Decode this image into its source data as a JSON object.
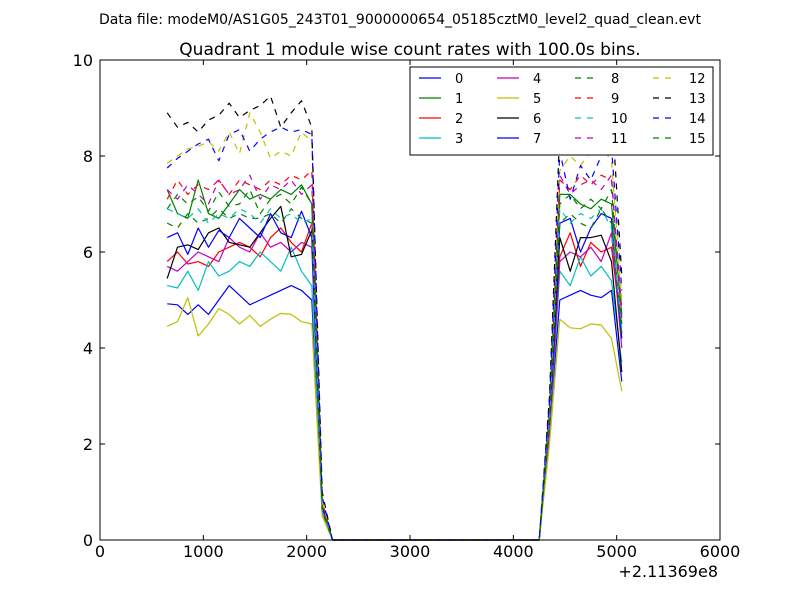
{
  "chart_data": {
    "type": "line",
    "suptitle": "Data file: modeM0/AS1G05_243T01_9000000654_05185cztM0_level2_quad_clean.evt",
    "title": "Quadrant 1 module wise count rates with 100.0s bins.",
    "xlabel": "",
    "ylabel": "",
    "x_offset_label": "+2.11369e8",
    "xlim": [
      0,
      6000
    ],
    "ylim": [
      0,
      10
    ],
    "xticks": [
      "0",
      "1000",
      "2000",
      "3000",
      "4000",
      "5000",
      "6000"
    ],
    "yticks": [
      "0",
      "2",
      "4",
      "6",
      "8",
      "10"
    ],
    "grid": false,
    "legend_position": "top-right",
    "x": [
      650,
      750,
      850,
      950,
      1050,
      1150,
      1250,
      1350,
      1450,
      1550,
      1650,
      1750,
      1850,
      1950,
      2050,
      2150,
      2250,
      2350,
      2450,
      2550,
      2650,
      2750,
      2850,
      2950,
      3050,
      3150,
      3250,
      3350,
      3450,
      3550,
      3650,
      3750,
      3850,
      3950,
      4050,
      4150,
      4250,
      4350,
      4450,
      4550,
      4650,
      4750,
      4850,
      4950,
      5050
    ],
    "series": [
      {
        "name": "0",
        "color": "#0000ff",
        "dash": "solid",
        "values": [
          4.92,
          4.9,
          4.7,
          4.9,
          4.7,
          5.0,
          5.3,
          5.1,
          4.9,
          5.0,
          5.1,
          5.2,
          5.3,
          5.2,
          5.0,
          0.6,
          0,
          0,
          0,
          0,
          0,
          0,
          0,
          0,
          0,
          0,
          0,
          0,
          0,
          0,
          0,
          0,
          0,
          0,
          0,
          0,
          0,
          2.3,
          5.0,
          5.1,
          5.2,
          5.1,
          5.05,
          5.2,
          3.3
        ]
      },
      {
        "name": "1",
        "color": "#008000",
        "dash": "solid",
        "values": [
          7.3,
          6.8,
          6.7,
          7.5,
          6.8,
          6.7,
          7.0,
          7.3,
          7.1,
          7.2,
          7.1,
          7.3,
          7.2,
          7.4,
          7.0,
          0.6,
          0,
          0,
          0,
          0,
          0,
          0,
          0,
          0,
          0,
          0,
          0,
          0,
          0,
          0,
          0,
          0,
          0,
          0,
          0,
          0,
          0,
          2.4,
          7.2,
          7.2,
          7.0,
          6.9,
          7.1,
          7.0,
          4.7
        ]
      },
      {
        "name": "2",
        "color": "#ff0000",
        "dash": "solid",
        "values": [
          5.8,
          6.0,
          5.75,
          5.8,
          5.7,
          6.0,
          6.1,
          6.2,
          6.1,
          5.9,
          6.3,
          6.5,
          6.2,
          6.0,
          6.6,
          0.7,
          0,
          0,
          0,
          0,
          0,
          0,
          0,
          0,
          0,
          0,
          0,
          0,
          0,
          0,
          0,
          0,
          0,
          0,
          0,
          0,
          0,
          2.3,
          5.9,
          6.4,
          5.7,
          6.2,
          6.0,
          6.1,
          4.3
        ]
      },
      {
        "name": "3",
        "color": "#00bfbf",
        "dash": "solid",
        "values": [
          5.3,
          5.25,
          5.6,
          5.2,
          5.8,
          5.5,
          5.6,
          5.8,
          5.7,
          6.0,
          5.8,
          5.6,
          6.1,
          5.6,
          5.3,
          0.6,
          0,
          0,
          0,
          0,
          0,
          0,
          0,
          0,
          0,
          0,
          0,
          0,
          0,
          0,
          0,
          0,
          0,
          0,
          0,
          0,
          0,
          2.2,
          5.6,
          5.3,
          5.9,
          5.5,
          5.7,
          5.4,
          3.7
        ]
      },
      {
        "name": "4",
        "color": "#bf00bf",
        "dash": "solid",
        "values": [
          5.7,
          5.6,
          5.8,
          6.0,
          5.9,
          5.8,
          6.3,
          6.1,
          6.0,
          6.4,
          6.1,
          6.2,
          6.0,
          6.2,
          6.1,
          0.6,
          0,
          0,
          0,
          0,
          0,
          0,
          0,
          0,
          0,
          0,
          0,
          0,
          0,
          0,
          0,
          0,
          0,
          0,
          0,
          0,
          0,
          2.3,
          5.8,
          6.0,
          5.9,
          6.1,
          5.8,
          6.4,
          4.0
        ]
      },
      {
        "name": "5",
        "color": "#bfbf00",
        "dash": "solid",
        "values": [
          4.45,
          4.55,
          5.05,
          4.25,
          4.5,
          4.82,
          4.7,
          4.5,
          4.68,
          4.45,
          4.6,
          4.72,
          4.7,
          4.55,
          4.5,
          0.5,
          0,
          0,
          0,
          0,
          0,
          0,
          0,
          0,
          0,
          0,
          0,
          0,
          0,
          0,
          0,
          0,
          0,
          0,
          0,
          0,
          0,
          2.0,
          4.6,
          4.42,
          4.4,
          4.5,
          4.48,
          4.2,
          3.1
        ]
      },
      {
        "name": "6",
        "color": "#000000",
        "dash": "solid",
        "values": [
          5.45,
          6.1,
          6.15,
          6.05,
          6.4,
          6.5,
          6.2,
          6.15,
          6.1,
          6.4,
          6.7,
          6.95,
          5.9,
          5.95,
          6.45,
          0.7,
          0,
          0,
          0,
          0,
          0,
          0,
          0,
          0,
          0,
          0,
          0,
          0,
          0,
          0,
          0,
          0,
          0,
          0,
          0,
          0,
          0,
          2.5,
          6.3,
          5.6,
          6.3,
          6.3,
          6.35,
          5.8,
          3.5
        ]
      },
      {
        "name": "7",
        "color": "#0000ff",
        "dash": "solid",
        "values": [
          6.3,
          6.4,
          5.95,
          6.5,
          6.1,
          6.45,
          6.3,
          6.7,
          6.5,
          6.3,
          6.8,
          6.4,
          6.3,
          6.85,
          6.3,
          0.7,
          0,
          0,
          0,
          0,
          0,
          0,
          0,
          0,
          0,
          0,
          0,
          0,
          0,
          0,
          0,
          0,
          0,
          0,
          0,
          0,
          0,
          2.6,
          6.6,
          6.7,
          6.0,
          6.5,
          6.8,
          6.7,
          4.2
        ]
      },
      {
        "name": "8",
        "color": "#008000",
        "dash": "dashed",
        "values": [
          6.6,
          6.5,
          6.8,
          6.6,
          6.7,
          6.9,
          6.7,
          6.8,
          6.7,
          6.7,
          6.8,
          6.6,
          6.9,
          6.7,
          6.6,
          0.6,
          0,
          0,
          0,
          0,
          0,
          0,
          0,
          0,
          0,
          0,
          0,
          0,
          0,
          0,
          0,
          0,
          0,
          0,
          0,
          0,
          0,
          2.5,
          6.6,
          6.8,
          6.6,
          6.5,
          6.9,
          6.6,
          4.3
        ]
      },
      {
        "name": "9",
        "color": "#ff0000",
        "dash": "dashed",
        "values": [
          7.1,
          7.5,
          7.2,
          7.4,
          7.3,
          7.5,
          7.2,
          7.5,
          7.4,
          7.3,
          7.5,
          7.4,
          7.6,
          7.5,
          7.7,
          0.8,
          0,
          0,
          0,
          0,
          0,
          0,
          0,
          0,
          0,
          0,
          0,
          0,
          0,
          0,
          0,
          0,
          0,
          0,
          0,
          0,
          0,
          2.7,
          7.5,
          7.3,
          7.6,
          7.4,
          7.6,
          7.5,
          4.8
        ]
      },
      {
        "name": "10",
        "color": "#00bfbf",
        "dash": "dashed",
        "values": [
          6.9,
          6.8,
          6.7,
          6.9,
          6.6,
          6.8,
          6.7,
          6.9,
          6.8,
          6.6,
          6.9,
          6.7,
          6.8,
          6.6,
          6.7,
          0.6,
          0,
          0,
          0,
          0,
          0,
          0,
          0,
          0,
          0,
          0,
          0,
          0,
          0,
          0,
          0,
          0,
          0,
          0,
          0,
          0,
          0,
          2.5,
          6.9,
          6.6,
          6.8,
          6.7,
          6.9,
          6.5,
          4.4
        ]
      },
      {
        "name": "11",
        "color": "#bf00bf",
        "dash": "dashed",
        "values": [
          7.3,
          7.1,
          7.4,
          7.2,
          7.0,
          7.5,
          7.2,
          7.3,
          7.6,
          7.1,
          7.4,
          7.3,
          7.5,
          7.2,
          7.4,
          0.7,
          0,
          0,
          0,
          0,
          0,
          0,
          0,
          0,
          0,
          0,
          0,
          0,
          0,
          0,
          0,
          0,
          0,
          0,
          0,
          0,
          0,
          2.6,
          7.6,
          7.2,
          7.4,
          7.5,
          7.3,
          7.6,
          4.6
        ]
      },
      {
        "name": "12",
        "color": "#bfbf00",
        "dash": "dashed",
        "values": [
          7.85,
          8.0,
          8.15,
          8.2,
          8.3,
          8.1,
          8.5,
          8.05,
          8.9,
          8.5,
          7.95,
          8.1,
          8.0,
          8.5,
          8.3,
          0.8,
          0,
          0,
          0,
          0,
          0,
          0,
          0,
          0,
          0,
          0,
          0,
          0,
          0,
          0,
          0,
          0,
          0,
          0,
          0,
          0,
          0,
          2.8,
          7.7,
          8.0,
          7.8,
          8.1,
          8.2,
          7.9,
          5.0
        ]
      },
      {
        "name": "13",
        "color": "#000000",
        "dash": "dashed",
        "values": [
          8.9,
          8.6,
          8.7,
          8.5,
          8.75,
          8.85,
          9.1,
          8.8,
          8.95,
          9.05,
          9.25,
          8.6,
          8.9,
          9.15,
          8.6,
          1.0,
          0,
          0,
          0,
          0,
          0,
          0,
          0,
          0,
          0,
          0,
          0,
          0,
          0,
          0,
          0,
          0,
          0,
          0,
          0,
          0,
          0,
          3.0,
          8.55,
          8.45,
          8.2,
          8.6,
          8.5,
          9.1,
          5.5
        ]
      },
      {
        "name": "14",
        "color": "#0000ff",
        "dash": "dashed",
        "values": [
          7.75,
          7.95,
          8.1,
          8.25,
          8.35,
          7.9,
          8.45,
          8.55,
          8.1,
          8.35,
          8.5,
          8.6,
          8.5,
          8.55,
          8.45,
          0.9,
          0,
          0,
          0,
          0,
          0,
          0,
          0,
          0,
          0,
          0,
          0,
          0,
          0,
          0,
          0,
          0,
          0,
          0,
          0,
          0,
          0,
          2.9,
          8.1,
          7.1,
          7.8,
          7.5,
          8.0,
          8.2,
          5.2
        ]
      },
      {
        "name": "15",
        "color": "#008000",
        "dash": "dashed",
        "values": [
          6.9,
          7.2,
          7.0,
          7.15,
          6.85,
          7.25,
          6.95,
          7.0,
          7.3,
          6.8,
          7.1,
          7.2,
          7.0,
          7.35,
          7.0,
          0.7,
          0,
          0,
          0,
          0,
          0,
          0,
          0,
          0,
          0,
          0,
          0,
          0,
          0,
          0,
          0,
          0,
          0,
          0,
          0,
          0,
          0,
          2.6,
          7.0,
          7.2,
          6.9,
          7.1,
          6.9,
          7.3,
          4.5
        ]
      }
    ]
  }
}
